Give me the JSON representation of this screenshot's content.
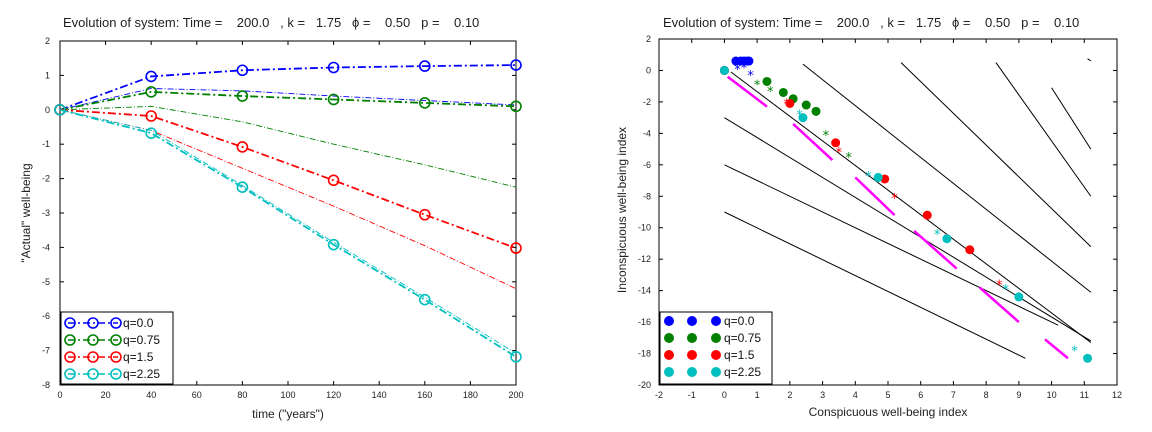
{
  "chart_data": [
    {
      "type": "line",
      "title": "Evolution of system: Time =    200.0   , k =   1.75   ϕ =    0.50   p =    0.10",
      "xlabel": "time (\"years\")",
      "ylabel": "\"Actual\" well-being",
      "xlim": [
        0,
        200
      ],
      "ylim": [
        -8,
        2
      ],
      "x_ticks": [
        "0",
        "20",
        "40",
        "60",
        "80",
        "100",
        "120",
        "140",
        "160",
        "180",
        "200"
      ],
      "y_ticks": [
        "2",
        "1",
        "0",
        "-1",
        "-2",
        "-3",
        "-4",
        "-5",
        "-6",
        "-7",
        "-8"
      ],
      "legend_position": "bottom-left",
      "x": [
        0,
        40,
        80,
        120,
        160,
        200
      ],
      "series": [
        {
          "name": "q=0.0",
          "color": "#0000ff",
          "values": [
            0,
            0.97,
            1.15,
            1.23,
            1.27,
            1.3
          ],
          "thin_values": [
            0,
            0.62,
            0.55,
            0.4,
            0.27,
            0.14
          ]
        },
        {
          "name": "q=0.75",
          "color": "#008000",
          "values": [
            0,
            0.52,
            0.4,
            0.3,
            0.2,
            0.1
          ],
          "thin_values": [
            0,
            0.1,
            -0.35,
            -1.0,
            -1.6,
            -2.25
          ]
        },
        {
          "name": "q=1.5",
          "color": "#ff0000",
          "values": [
            0,
            -0.18,
            -1.08,
            -2.05,
            -3.05,
            -4.02
          ],
          "thin_values": [
            0,
            -0.6,
            -1.7,
            -2.8,
            -3.95,
            -5.2
          ]
        },
        {
          "name": "q=2.25",
          "color": "#00bfbf",
          "values": [
            0,
            -0.68,
            -2.25,
            -3.92,
            -5.52,
            -7.18
          ],
          "thin_values": [
            0,
            -0.6,
            -2.2,
            -3.85,
            -5.45,
            -7.08
          ]
        }
      ]
    },
    {
      "type": "scatter",
      "title": "Evolution of system: Time =    200.0   , k =   1.75   ϕ =    0.50   p =    0.10",
      "xlabel": "Conspicuous well-being index",
      "ylabel": "Inconspicuous well-being index",
      "xlim": [
        -2,
        12
      ],
      "ylim": [
        -20,
        2
      ],
      "x_ticks": [
        "-2",
        "-1",
        "0",
        "1",
        "2",
        "3",
        "4",
        "5",
        "6",
        "7",
        "8",
        "9",
        "10",
        "11",
        "12"
      ],
      "y_ticks": [
        "2",
        "0",
        "-2",
        "-4",
        "-6",
        "-8",
        "-10",
        "-12",
        "-14",
        "-16",
        "-18",
        "-20"
      ],
      "legend_position": "bottom-left",
      "iso_lines": [
        {
          "x": [
            0,
            9.2
          ],
          "y": [
            -9,
            -18.3
          ]
        },
        {
          "x": [
            0,
            10.2
          ],
          "y": [
            -6,
            -16.2
          ]
        },
        {
          "x": [
            0,
            11.2
          ],
          "y": [
            -3,
            -17.2
          ]
        },
        {
          "x": [
            0.2,
            11.2
          ],
          "y": [
            -0.1,
            -17.3
          ]
        },
        {
          "x": [
            2.4,
            11.2
          ],
          "y": [
            0.4,
            -14.1
          ]
        },
        {
          "x": [
            5.4,
            11.2
          ],
          "y": [
            0.5,
            -11.2
          ]
        },
        {
          "x": [
            8.3,
            11.2
          ],
          "y": [
            0.5,
            -8.0
          ]
        },
        {
          "x": [
            10.0,
            11.2
          ],
          "y": [
            -1.1,
            -5.0
          ]
        },
        {
          "x": [
            11.1,
            11.2
          ],
          "y": [
            0.75,
            0.6
          ]
        }
      ],
      "segments": [
        {
          "x": [
            0.1,
            1.3
          ],
          "y": [
            -0.4,
            -2.3
          ]
        },
        {
          "x": [
            2.1,
            3.3
          ],
          "y": [
            -3.4,
            -5.7
          ]
        },
        {
          "x": [
            4.0,
            5.2
          ],
          "y": [
            -6.8,
            -9.2
          ]
        },
        {
          "x": [
            5.8,
            7.1
          ],
          "y": [
            -10.2,
            -12.6
          ]
        },
        {
          "x": [
            7.8,
            9.0
          ],
          "y": [
            -13.8,
            -16.0
          ]
        },
        {
          "x": [
            9.8,
            10.5
          ],
          "y": [
            -17.1,
            -18.3
          ]
        }
      ],
      "series": [
        {
          "name": "q=0.0",
          "color": "#0000ff",
          "dots": [
            [
              0,
              0
            ],
            [
              0.35,
              0.6
            ],
            [
              0.5,
              0.6
            ],
            [
              0.6,
              0.6
            ],
            [
              0.7,
              0.6
            ],
            [
              0.75,
              0.6
            ]
          ],
          "stars": [
            [
              0.4,
              0.1
            ],
            [
              0.6,
              0.2
            ],
            [
              0.8,
              -0.3
            ]
          ]
        },
        {
          "name": "q=0.75",
          "color": "#008000",
          "dots": [
            [
              0,
              0
            ],
            [
              1.3,
              -0.7
            ],
            [
              1.8,
              -1.4
            ],
            [
              2.1,
              -1.8
            ],
            [
              2.5,
              -2.2
            ],
            [
              2.8,
              -2.6
            ]
          ],
          "stars": [
            [
              1.0,
              -0.9
            ],
            [
              1.4,
              -1.3
            ],
            [
              3.1,
              -4.1
            ],
            [
              3.8,
              -5.5
            ]
          ]
        },
        {
          "name": "q=1.5",
          "color": "#ff0000",
          "dots": [
            [
              0,
              0
            ],
            [
              2.0,
              -2.1
            ],
            [
              3.4,
              -4.6
            ],
            [
              4.9,
              -6.9
            ],
            [
              6.2,
              -9.2
            ],
            [
              7.5,
              -11.4
            ]
          ],
          "stars": [
            [
              1.9,
              -2.1
            ],
            [
              3.5,
              -5.2
            ],
            [
              5.2,
              -8.1
            ],
            [
              6.8,
              -10.7
            ],
            [
              8.4,
              -13.6
            ]
          ]
        },
        {
          "name": "q=2.25",
          "color": "#00bfbf",
          "dots": [
            [
              0,
              0
            ],
            [
              2.4,
              -3.0
            ],
            [
              4.7,
              -6.8
            ],
            [
              6.8,
              -10.7
            ],
            [
              9.0,
              -14.4
            ],
            [
              11.1,
              -18.3
            ]
          ],
          "stars": [
            [
              2.3,
              -2.8
            ],
            [
              4.4,
              -6.7
            ],
            [
              6.5,
              -10.4
            ],
            [
              8.6,
              -13.9
            ],
            [
              10.7,
              -17.8
            ]
          ]
        }
      ]
    }
  ]
}
